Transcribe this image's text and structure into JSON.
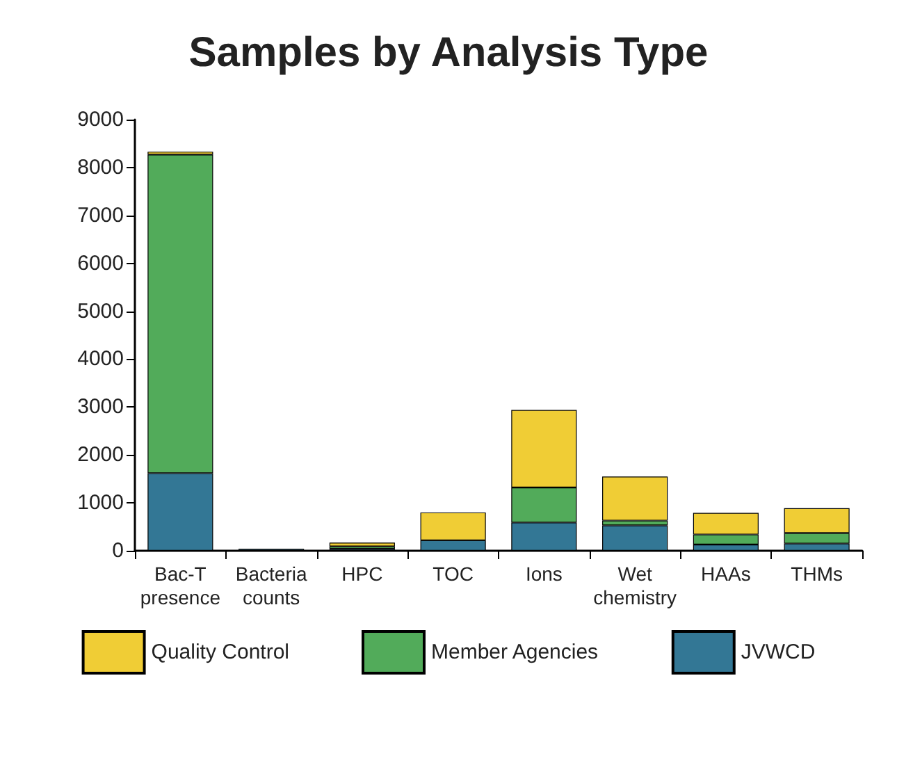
{
  "chart_data": {
    "type": "bar",
    "title": "Samples by Analysis Type",
    "stacked": true,
    "categories": [
      "Bac-T presence",
      "Bacteria counts",
      "HPC",
      "TOC",
      "Ions",
      "Wet chemistry",
      "HAAs",
      "THMs"
    ],
    "series": [
      {
        "name": "JVWCD",
        "color": "#337795",
        "values": [
          1620,
          40,
          40,
          220,
          590,
          530,
          130,
          150
        ]
      },
      {
        "name": "Member Agencies",
        "color": "#52ab5a",
        "values": [
          6650,
          0,
          50,
          0,
          730,
          100,
          210,
          220
        ]
      },
      {
        "name": "Quality Control",
        "color": "#f0cd35",
        "values": [
          60,
          0,
          80,
          580,
          1620,
          920,
          450,
          520
        ]
      }
    ],
    "ylim": [
      0,
      9000
    ],
    "yticks": [
      0,
      1000,
      2000,
      3000,
      4000,
      5000,
      6000,
      7000,
      8000,
      9000
    ],
    "grid": false,
    "legend": "bottom"
  }
}
